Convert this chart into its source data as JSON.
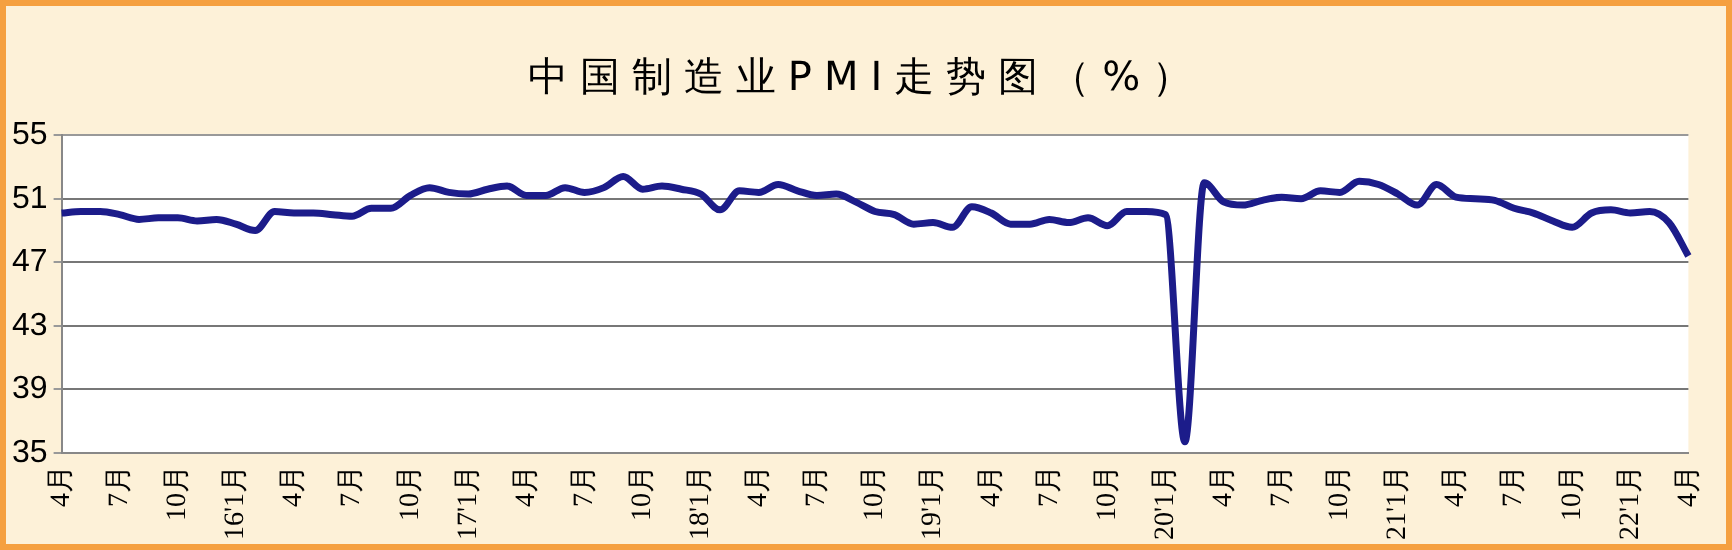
{
  "chart_data": {
    "type": "line",
    "title": "中国制造业PMI走势图（%）",
    "categories": [
      "4月",
      null,
      null,
      "7月",
      null,
      null,
      "10月",
      null,
      null,
      "16'1月",
      null,
      null,
      "4月",
      null,
      null,
      "7月",
      null,
      null,
      "10月",
      null,
      null,
      "17'1月",
      null,
      null,
      "4月",
      null,
      null,
      "7月",
      null,
      null,
      "10月",
      null,
      null,
      "18'1月",
      null,
      null,
      "4月",
      null,
      null,
      "7月",
      null,
      null,
      "10月",
      null,
      null,
      "19'1月",
      null,
      null,
      "4月",
      null,
      null,
      "7月",
      null,
      null,
      "10月",
      null,
      null,
      "20'1月",
      null,
      null,
      "4月",
      null,
      null,
      "7月",
      null,
      null,
      "10月",
      null,
      null,
      "21'1月",
      null,
      null,
      "4月",
      null,
      null,
      "7月",
      null,
      null,
      "10月",
      null,
      null,
      "22'1月",
      null,
      null,
      "4月"
    ],
    "series": [
      {
        "color": "#1c1c8a",
        "values": [
          50.1,
          50.2,
          50.2,
          50.0,
          49.7,
          49.8,
          49.8,
          49.6,
          49.7,
          49.4,
          49.0,
          50.2,
          50.1,
          50.1,
          50.0,
          49.9,
          50.4,
          50.4,
          51.2,
          51.7,
          51.4,
          51.3,
          51.6,
          51.8,
          51.2,
          51.2,
          51.7,
          51.4,
          51.7,
          52.4,
          51.6,
          51.8,
          51.6,
          51.3,
          50.3,
          51.5,
          51.4,
          51.9,
          51.5,
          51.2,
          51.3,
          50.8,
          50.2,
          50.0,
          49.4,
          49.5,
          49.2,
          50.5,
          50.1,
          49.4,
          49.4,
          49.7,
          49.5,
          49.8,
          49.3,
          50.2,
          50.2,
          50.0,
          35.7,
          52.0,
          50.8,
          50.6,
          50.9,
          51.1,
          51.0,
          51.5,
          51.4,
          52.1,
          51.9,
          51.3,
          50.6,
          51.9,
          51.1,
          51.0,
          50.9,
          50.4,
          50.1,
          49.6,
          49.2,
          50.1,
          50.3,
          50.1,
          50.2,
          49.5,
          47.4
        ]
      }
    ],
    "ylim": [
      35,
      55
    ],
    "yticks": [
      35,
      39,
      43,
      47,
      51,
      55
    ],
    "grid": "y",
    "marker": "none",
    "line_style": "solid",
    "legend": false
  }
}
